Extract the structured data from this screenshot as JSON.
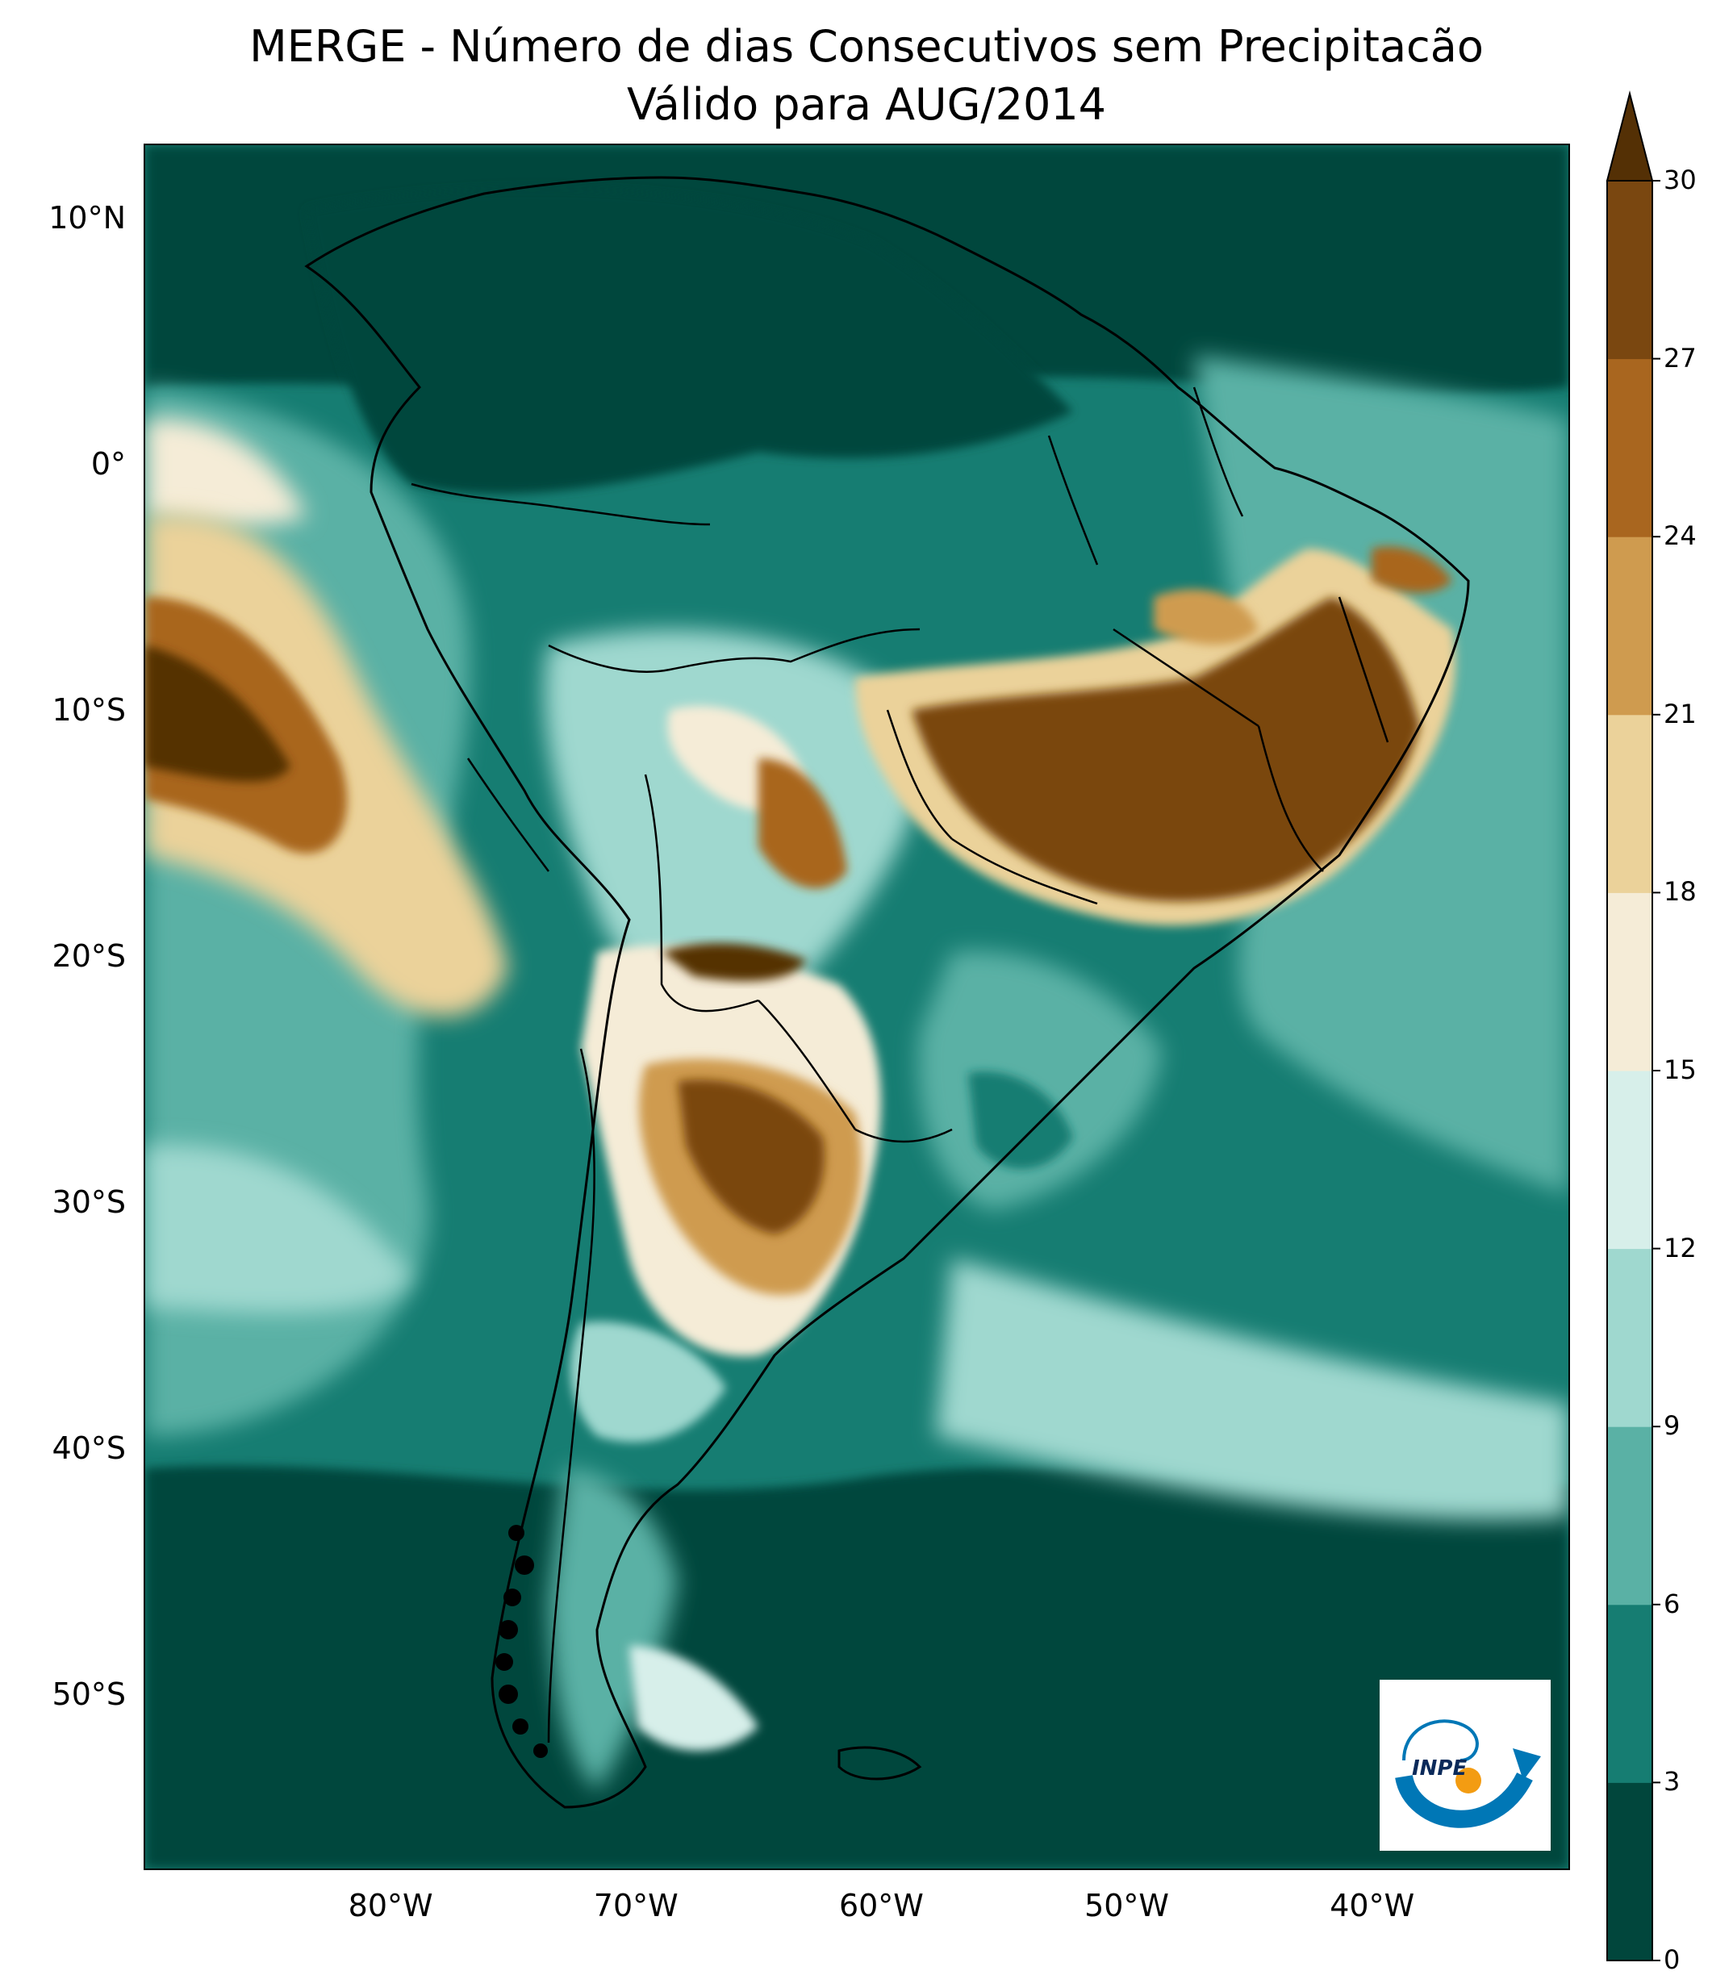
{
  "title_line1": "MERGE - Número de dias Consecutivos sem Precipitacão",
  "title_line2": "Válido para AUG/2014",
  "lat_ticks": [
    {
      "label": "10°N",
      "lat": 10
    },
    {
      "label": "0°",
      "lat": 0
    },
    {
      "label": "10°S",
      "lat": -10
    },
    {
      "label": "20°S",
      "lat": -20
    },
    {
      "label": "30°S",
      "lat": -30
    },
    {
      "label": "40°S",
      "lat": -40
    },
    {
      "label": "50°S",
      "lat": -50
    }
  ],
  "lon_ticks": [
    {
      "label": "80°W",
      "lon": -80
    },
    {
      "label": "70°W",
      "lon": -70
    },
    {
      "label": "60°W",
      "lon": -60
    },
    {
      "label": "50°W",
      "lon": -50
    },
    {
      "label": "40°W",
      "lon": -40
    }
  ],
  "extent": {
    "lon_min": -90,
    "lon_max": -32,
    "lat_min": -57,
    "lat_max": 13
  },
  "colorbar": {
    "levels": [
      0,
      3,
      6,
      9,
      12,
      15,
      18,
      21,
      24,
      27,
      30
    ],
    "labels": [
      "0",
      "3",
      "6",
      "9",
      "12",
      "15",
      "18",
      "21",
      "24",
      "27",
      "30"
    ],
    "colors": [
      "#01463c",
      "#167d72",
      "#5ab1a5",
      "#9fd8cf",
      "#d7efea",
      "#f5ecd7",
      "#ebd29a",
      "#cf9b4f",
      "#a9661f",
      "#7a4710"
    ],
    "extend_color": "#543005"
  },
  "logo_text": "INPE"
}
